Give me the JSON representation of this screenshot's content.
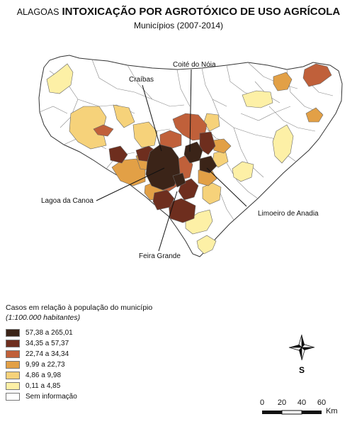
{
  "title": {
    "prefix": "ALAGOAS",
    "main": "INTOXICAÇÃO POR AGROTÓXICO DE USO AGRÍCOLA"
  },
  "subtitle": "Municípios (2007-2014)",
  "labels": {
    "caraibas": "Craíbas",
    "coite": "Coité do Nóia",
    "lagoa": "Lagoa da Canoa",
    "limoeiro": "Limoeiro de Anadia",
    "feira": "Feira Grande"
  },
  "legend": {
    "title": "Casos em relação à população do município",
    "subtitle": "(1:100.000 habitantes)",
    "classes": [
      {
        "label": "57,38 a 265,01",
        "color": "#3b2418"
      },
      {
        "label": "34,35 a 57,37",
        "color": "#6e2e1e"
      },
      {
        "label": "22,74 a 34,34",
        "color": "#c0603a"
      },
      {
        "label": "9,99 a 22,73",
        "color": "#e2a046"
      },
      {
        "label": "4,86 a 9,98",
        "color": "#f6d27a"
      },
      {
        "label": "0,11 a 4,85",
        "color": "#fdf0a6"
      },
      {
        "label": "Sem informação",
        "color": "#ffffff"
      }
    ]
  },
  "north_arrow": "S",
  "scale": {
    "ticks": [
      "0",
      "20",
      "40",
      "60"
    ],
    "unit": "Km"
  }
}
